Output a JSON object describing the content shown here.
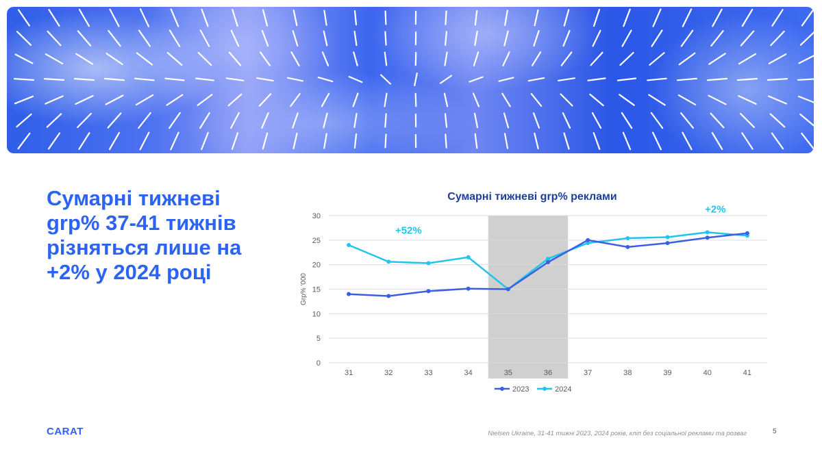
{
  "headline": "Сумарні тижневі grp% 37-41 тижнів різняться лише на +2% у 2024 році",
  "logo": "CARAT",
  "footnote": "Nielsen Ukraine,   31-41 тижні 2023, 2024 років, кліп без соціальної реклами та розваг",
  "page_number": "5",
  "colors": {
    "brand_blue": "#2d63f2",
    "title_navy": "#1c3f9e",
    "series_2023": "#3a5fe0",
    "series_2024": "#22c4ec",
    "highlight_band": "#d0d0d0"
  },
  "chart_data": {
    "type": "line",
    "title": "Сумарні тижневі  grp% реклами",
    "ylabel": "Grp% '000",
    "xlabel": "",
    "categories": [
      "31",
      "32",
      "33",
      "34",
      "35",
      "36",
      "37",
      "38",
      "39",
      "40",
      "41"
    ],
    "ylim": [
      0,
      30
    ],
    "yticks": [
      0,
      5,
      10,
      15,
      20,
      25,
      30
    ],
    "grid": true,
    "legend": "bottom",
    "highlight": [
      "35",
      "36"
    ],
    "series": [
      {
        "name": "2023",
        "values": [
          14.0,
          13.6,
          14.6,
          15.1,
          15.0,
          20.5,
          25.0,
          23.6,
          24.4,
          25.5,
          26.4
        ]
      },
      {
        "name": "2024",
        "values": [
          24.0,
          20.6,
          20.3,
          21.5,
          15.0,
          21.2,
          24.4,
          25.4,
          25.6,
          26.6,
          25.9
        ]
      }
    ],
    "annotations": [
      "+52%",
      "+2%"
    ]
  }
}
